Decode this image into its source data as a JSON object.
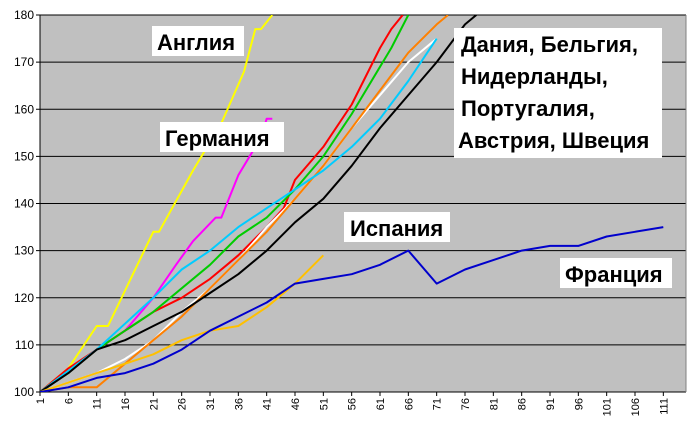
{
  "chart_data": {
    "type": "line",
    "title": "",
    "xlabel": "",
    "ylabel": "",
    "xlim": [
      1,
      115
    ],
    "ylim": [
      100,
      180
    ],
    "yticks": [
      100,
      110,
      120,
      130,
      140,
      150,
      160,
      170,
      180
    ],
    "xticks": [
      1,
      6,
      11,
      16,
      21,
      26,
      31,
      36,
      41,
      46,
      51,
      56,
      61,
      66,
      71,
      76,
      81,
      86,
      91,
      96,
      101,
      106,
      111
    ],
    "grid": "horizontal",
    "plot_background": "#c0c0c0",
    "series": [
      {
        "color": "#ffff00",
        "points": [
          [
            1,
            100
          ],
          [
            6,
            105
          ],
          [
            11,
            114
          ],
          [
            13,
            114
          ],
          [
            21,
            134
          ],
          [
            22,
            134
          ],
          [
            28,
            147
          ],
          [
            33,
            157
          ],
          [
            37,
            168
          ],
          [
            39,
            177
          ],
          [
            40,
            177
          ],
          [
            42,
            180
          ]
        ]
      },
      {
        "color": "#ff00ff",
        "points": [
          [
            1,
            100
          ],
          [
            6,
            104
          ],
          [
            11,
            109
          ],
          [
            16,
            113
          ],
          [
            21,
            120
          ],
          [
            25,
            127
          ],
          [
            28,
            132
          ],
          [
            32,
            137
          ],
          [
            33,
            137
          ],
          [
            36,
            146
          ],
          [
            40,
            154
          ],
          [
            41,
            158
          ],
          [
            42,
            158
          ]
        ]
      },
      {
        "color": "#ff0000",
        "points": [
          [
            1,
            100
          ],
          [
            6,
            105
          ],
          [
            11,
            109
          ],
          [
            16,
            113
          ],
          [
            21,
            117
          ],
          [
            26,
            120
          ],
          [
            31,
            124
          ],
          [
            34,
            127
          ],
          [
            36,
            129
          ],
          [
            41,
            135
          ],
          [
            44,
            139
          ],
          [
            46,
            145
          ],
          [
            51,
            152
          ],
          [
            56,
            161
          ],
          [
            61,
            173
          ],
          [
            63,
            177
          ],
          [
            65,
            180
          ]
        ]
      },
      {
        "color": "#00cc00",
        "points": [
          [
            1,
            100
          ],
          [
            6,
            104
          ],
          [
            11,
            109
          ],
          [
            16,
            113
          ],
          [
            21,
            117
          ],
          [
            26,
            122
          ],
          [
            31,
            127
          ],
          [
            36,
            133
          ],
          [
            41,
            137
          ],
          [
            46,
            143
          ],
          [
            51,
            150
          ],
          [
            56,
            159
          ],
          [
            61,
            169
          ],
          [
            63,
            173
          ],
          [
            66,
            180
          ]
        ]
      },
      {
        "color": "#ffffff",
        "points": [
          [
            1,
            100
          ],
          [
            6,
            102
          ],
          [
            11,
            104
          ],
          [
            16,
            107
          ],
          [
            21,
            111
          ],
          [
            26,
            117
          ],
          [
            31,
            122
          ],
          [
            36,
            128
          ],
          [
            41,
            135
          ],
          [
            46,
            141
          ],
          [
            51,
            148
          ],
          [
            56,
            156
          ],
          [
            61,
            163
          ],
          [
            66,
            170
          ],
          [
            70,
            174
          ],
          [
            71,
            175
          ]
        ]
      },
      {
        "color": "#ff8000",
        "points": [
          [
            1,
            100
          ],
          [
            6,
            101
          ],
          [
            11,
            101
          ],
          [
            16,
            106
          ],
          [
            21,
            111
          ],
          [
            26,
            116
          ],
          [
            31,
            122
          ],
          [
            36,
            128
          ],
          [
            41,
            134
          ],
          [
            46,
            141
          ],
          [
            51,
            148
          ],
          [
            56,
            156
          ],
          [
            61,
            164
          ],
          [
            66,
            172
          ],
          [
            71,
            178
          ],
          [
            73,
            180
          ]
        ]
      },
      {
        "color": "#00ccff",
        "points": [
          [
            1,
            100
          ],
          [
            11,
            109
          ],
          [
            21,
            120
          ],
          [
            26,
            126
          ],
          [
            31,
            130
          ],
          [
            36,
            135
          ],
          [
            41,
            139
          ],
          [
            46,
            143
          ],
          [
            51,
            147
          ],
          [
            56,
            152
          ],
          [
            61,
            158
          ],
          [
            66,
            166
          ],
          [
            71,
            175
          ]
        ]
      },
      {
        "color": "#000000",
        "points": [
          [
            1,
            100
          ],
          [
            6,
            104
          ],
          [
            11,
            109
          ],
          [
            16,
            111
          ],
          [
            21,
            114
          ],
          [
            26,
            117
          ],
          [
            31,
            121
          ],
          [
            36,
            125
          ],
          [
            41,
            130
          ],
          [
            46,
            136
          ],
          [
            51,
            141
          ],
          [
            56,
            148
          ],
          [
            61,
            156
          ],
          [
            66,
            163
          ],
          [
            71,
            170
          ],
          [
            76,
            178
          ],
          [
            78,
            180
          ]
        ]
      },
      {
        "color": "#ffc000",
        "points": [
          [
            1,
            100
          ],
          [
            11,
            104
          ],
          [
            21,
            108
          ],
          [
            26,
            111
          ],
          [
            31,
            113
          ],
          [
            36,
            114
          ],
          [
            41,
            118
          ],
          [
            46,
            123
          ],
          [
            51,
            129
          ]
        ]
      },
      {
        "color": "#0000cc",
        "points": [
          [
            1,
            100
          ],
          [
            6,
            101
          ],
          [
            11,
            103
          ],
          [
            16,
            104
          ],
          [
            21,
            106
          ],
          [
            26,
            109
          ],
          [
            31,
            113
          ],
          [
            36,
            116
          ],
          [
            41,
            119
          ],
          [
            46,
            123
          ],
          [
            51,
            124
          ],
          [
            56,
            125
          ],
          [
            61,
            127
          ],
          [
            66,
            130
          ],
          [
            71,
            123
          ],
          [
            76,
            126
          ],
          [
            81,
            128
          ],
          [
            86,
            130
          ],
          [
            91,
            131
          ],
          [
            96,
            131
          ],
          [
            101,
            133
          ],
          [
            106,
            134
          ],
          [
            111,
            135
          ]
        ]
      }
    ],
    "annotations": [
      {
        "text": "Англия"
      },
      {
        "text": "Германия"
      },
      {
        "text": "Дания, Бельгия,"
      },
      {
        "text": "Нидерланды,"
      },
      {
        "text": "Португалия,"
      },
      {
        "text": "Австрия, Швеция"
      },
      {
        "text": "Испания"
      },
      {
        "text": "Франция"
      }
    ]
  }
}
